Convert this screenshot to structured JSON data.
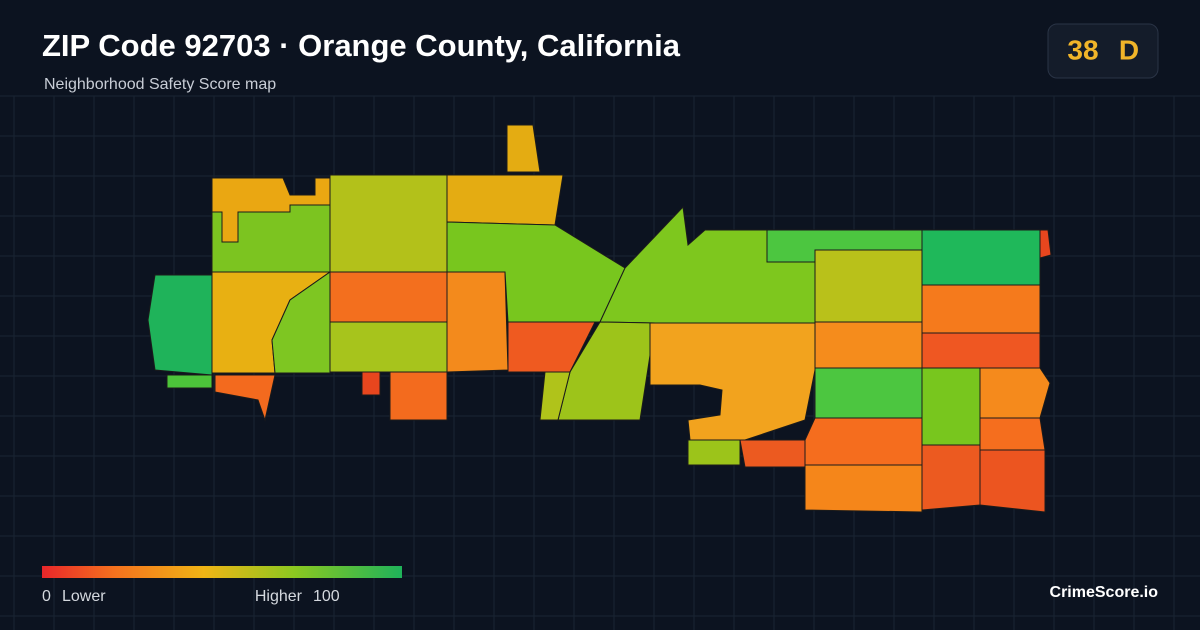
{
  "header": {
    "title": "ZIP Code 92703 · Orange County, California",
    "subtitle": "Neighborhood Safety Score map"
  },
  "score": {
    "value": 38,
    "grade": "D"
  },
  "legend": {
    "min": 0,
    "low_label": "Lower",
    "high_label": "Higher",
    "max": 100
  },
  "brand": "CrimeScore.io"
}
